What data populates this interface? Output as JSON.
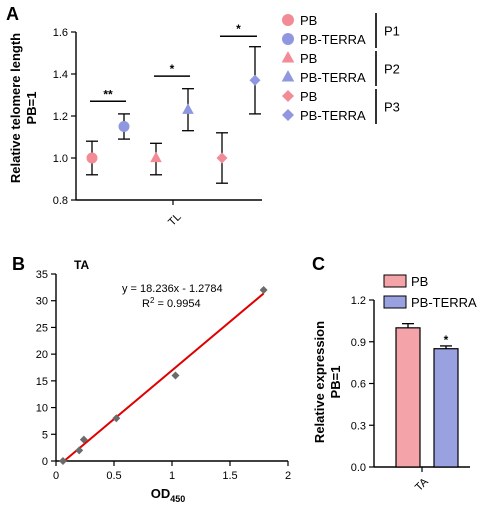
{
  "chart_data": [
    {
      "panel": "A",
      "type": "scatter",
      "ylabel": "Relative telomere length\nPB=1",
      "xlabel": "",
      "x_tick": "TL",
      "ylim": [
        0.8,
        1.6
      ],
      "yticks": [
        "0.8",
        "1.0",
        "1.2",
        "1.4",
        "1.6"
      ],
      "series": [
        {
          "name": "PB",
          "pair": "P1",
          "marker": "circle",
          "color": "#f28b96",
          "mean": 1.0,
          "lower": 0.92,
          "upper": 1.08
        },
        {
          "name": "PB-TERRA",
          "pair": "P1",
          "marker": "circle",
          "color": "#8e97e0",
          "mean": 1.15,
          "lower": 1.09,
          "upper": 1.21
        },
        {
          "name": "PB",
          "pair": "P2",
          "marker": "triangle",
          "color": "#f28b96",
          "mean": 1.0,
          "lower": 0.92,
          "upper": 1.07
        },
        {
          "name": "PB-TERRA",
          "pair": "P2",
          "marker": "triangle",
          "color": "#8e97e0",
          "mean": 1.23,
          "lower": 1.13,
          "upper": 1.33
        },
        {
          "name": "PB",
          "pair": "P3",
          "marker": "diamond",
          "color": "#f28b96",
          "mean": 1.0,
          "lower": 0.88,
          "upper": 1.12
        },
        {
          "name": "PB-TERRA",
          "pair": "P3",
          "marker": "diamond",
          "color": "#8e97e0",
          "mean": 1.37,
          "lower": 1.21,
          "upper": 1.53
        }
      ],
      "significance": [
        {
          "pair": "P1",
          "label": "**",
          "y": 1.27
        },
        {
          "pair": "P2",
          "label": "*",
          "y": 1.39
        },
        {
          "pair": "P3",
          "label": "*",
          "y": 1.58
        }
      ],
      "legend_groups": [
        "P1",
        "P2",
        "P3"
      ]
    },
    {
      "panel": "B",
      "type": "scatter",
      "title": "TA",
      "xlabel": "OD",
      "xlabel_sub": "450",
      "ylabel": "",
      "xlim": [
        0,
        2
      ],
      "ylim": [
        0,
        35
      ],
      "xticks": [
        "0",
        "0.5",
        "1",
        "1.5",
        "2"
      ],
      "yticks": [
        "0",
        "5",
        "10",
        "15",
        "20",
        "25",
        "30",
        "35"
      ],
      "points": [
        {
          "x": 0.06,
          "y": 0.0
        },
        {
          "x": 0.2,
          "y": 2.0
        },
        {
          "x": 0.24,
          "y": 4.0
        },
        {
          "x": 0.52,
          "y": 8.0
        },
        {
          "x": 1.03,
          "y": 16.0
        },
        {
          "x": 1.79,
          "y": 32.0
        }
      ],
      "fit": {
        "slope": 18.236,
        "intercept": -1.2784,
        "x_range": [
          0.07,
          1.79
        ],
        "color": "#e00000"
      },
      "equation": "y = 18.236x - 1.2784",
      "r2_prefix": "R",
      "r2_sup": "2",
      "r2_suffix": " = 0.9954"
    },
    {
      "panel": "C",
      "type": "bar",
      "ylabel": "Relative expression\nPB=1",
      "categories": [
        "TA"
      ],
      "ylim": [
        0,
        1.2
      ],
      "yticks": [
        "0.0",
        "0.3",
        "0.6",
        "0.9",
        "1.2"
      ],
      "series": [
        {
          "name": "PB",
          "color": "#f4a3a8",
          "value": 1.0,
          "err": 0.03
        },
        {
          "name": "PB-TERRA",
          "color": "#9aa1e0",
          "value": 0.85,
          "err": 0.02,
          "sig": "*"
        }
      ]
    }
  ]
}
